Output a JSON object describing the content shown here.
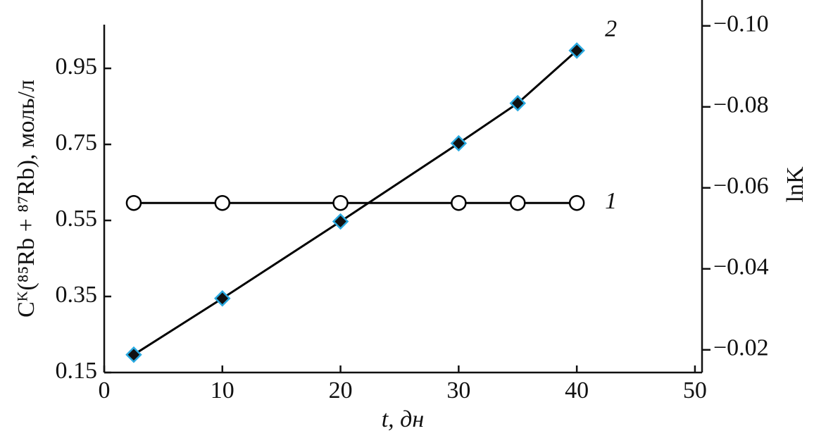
{
  "chart_data": {
    "type": "line",
    "xlabel": "t, дн",
    "ylabel": "Cᴷ(⁸⁵Rb + ⁸⁷Rb), моль/л",
    "y2label": "lnK",
    "x": [
      2.5,
      10,
      20,
      30,
      35,
      40
    ],
    "series": [
      {
        "name": "1",
        "color": "#000000",
        "marker": "circle",
        "axis": "y",
        "values": [
          0.596,
          0.596,
          0.596,
          0.596,
          0.596,
          0.596
        ]
      },
      {
        "name": "2",
        "color": "#000000",
        "marker": "diamond",
        "axis": "y2",
        "values": [
          -0.0188,
          -0.0327,
          -0.0517,
          -0.071,
          -0.0809,
          -0.0939
        ]
      }
    ],
    "xlim": [
      0,
      50.6
    ],
    "xticks": [
      0,
      10,
      20,
      30,
      40,
      50
    ],
    "ylim": [
      0.15,
      1.065
    ],
    "yticks": [
      0.15,
      0.35,
      0.55,
      0.75,
      0.95
    ],
    "y2lim": [
      -0.0144,
      -0.1003
    ],
    "y2ticks": [
      {
        "value": -0.02,
        "label": "−0.02"
      },
      {
        "value": -0.04,
        "label": "−0.04"
      },
      {
        "value": -0.06,
        "label": "−0.06"
      },
      {
        "value": -0.08,
        "label": "−0.08"
      },
      {
        "value": -0.1,
        "label": "−0.10"
      }
    ],
    "grid": false
  }
}
